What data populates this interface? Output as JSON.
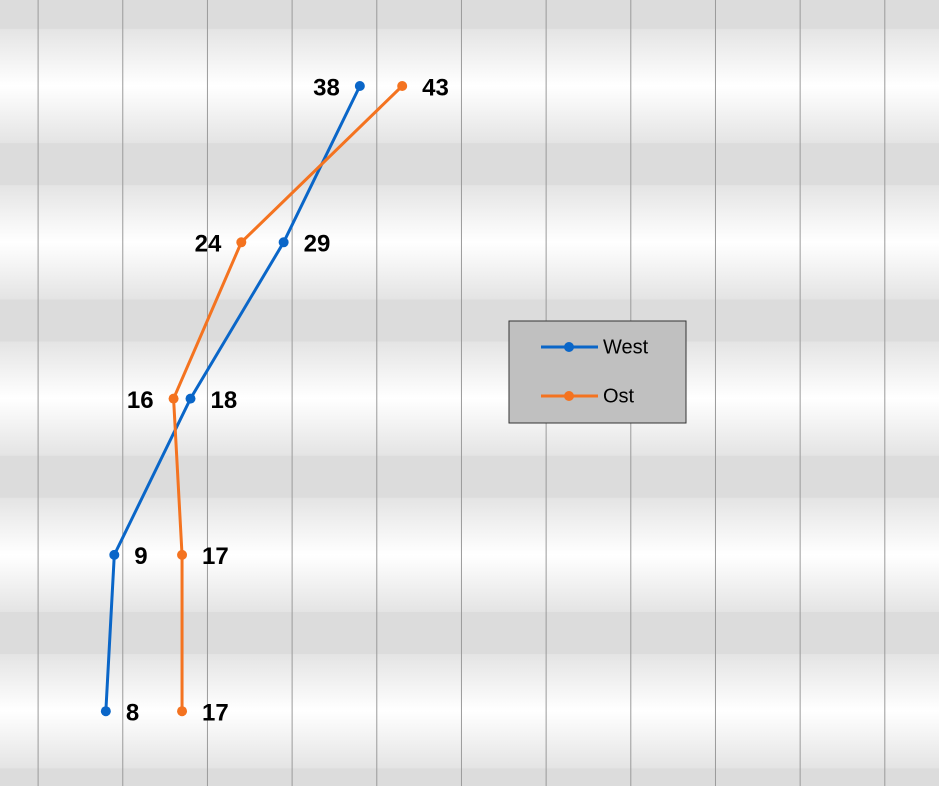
{
  "chart_data": {
    "type": "line",
    "orientation": "horizontal",
    "categories": [
      null,
      null,
      null,
      null,
      null
    ],
    "series": [
      {
        "name": "West",
        "color": "#0a66c8",
        "values": [
          38,
          29,
          18,
          9,
          8
        ]
      },
      {
        "name": "Ost",
        "color": "#f47320",
        "values": [
          43,
          24,
          16,
          17,
          17
        ]
      }
    ],
    "xlim": [
      -4.5,
      106.4
    ],
    "xticks": [
      0,
      10,
      20,
      30,
      40,
      50,
      60,
      70,
      80,
      90,
      100
    ],
    "grid": true,
    "legend": "right"
  }
}
